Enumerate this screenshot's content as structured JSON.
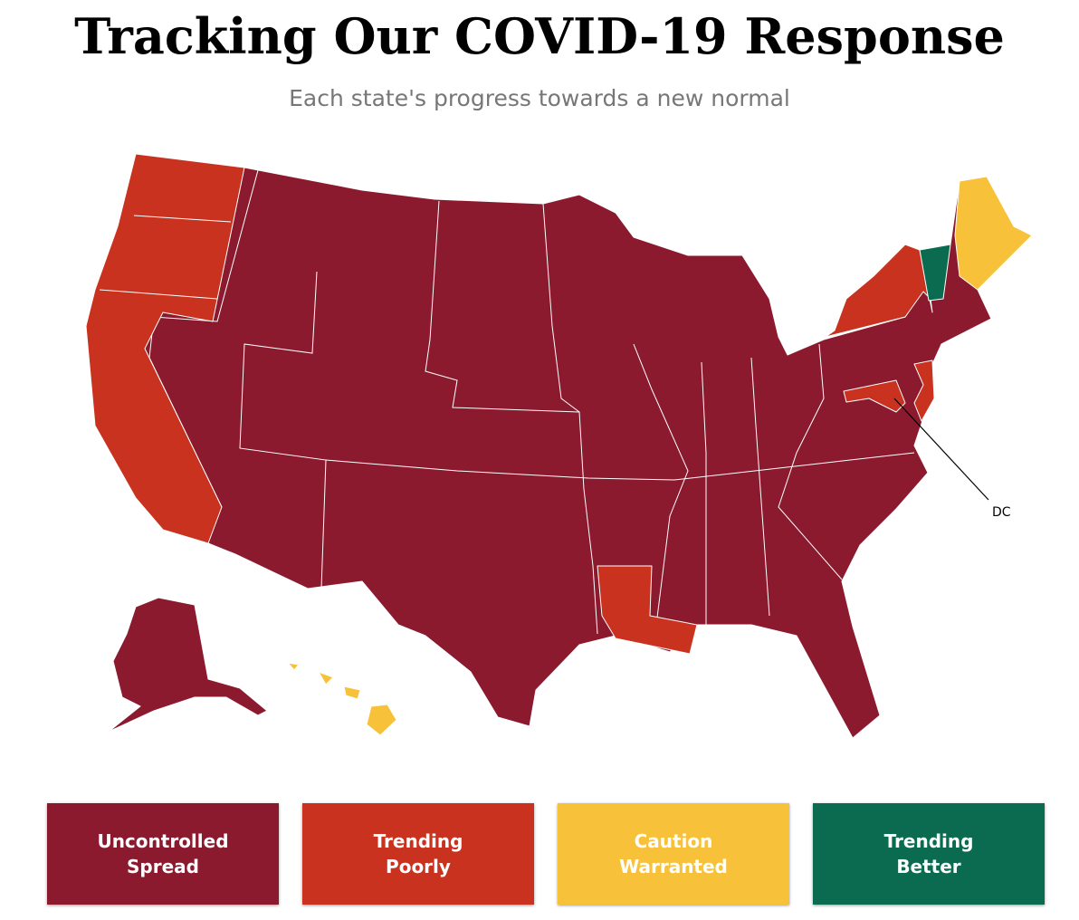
{
  "header": {
    "title": "Tracking Our COVID-19 Response",
    "subtitle": "Each state's progress towards a new normal"
  },
  "map": {
    "annotation": "DC"
  },
  "legend": {
    "items": [
      {
        "label": "Uncontrolled Spread",
        "color": "#8b1a2f"
      },
      {
        "label": "Trending Poorly",
        "color": "#c8321f"
      },
      {
        "label": "Caution Warranted",
        "color": "#f7c23a"
      },
      {
        "label": "Trending Better",
        "color": "#0b6b50"
      }
    ]
  }
}
